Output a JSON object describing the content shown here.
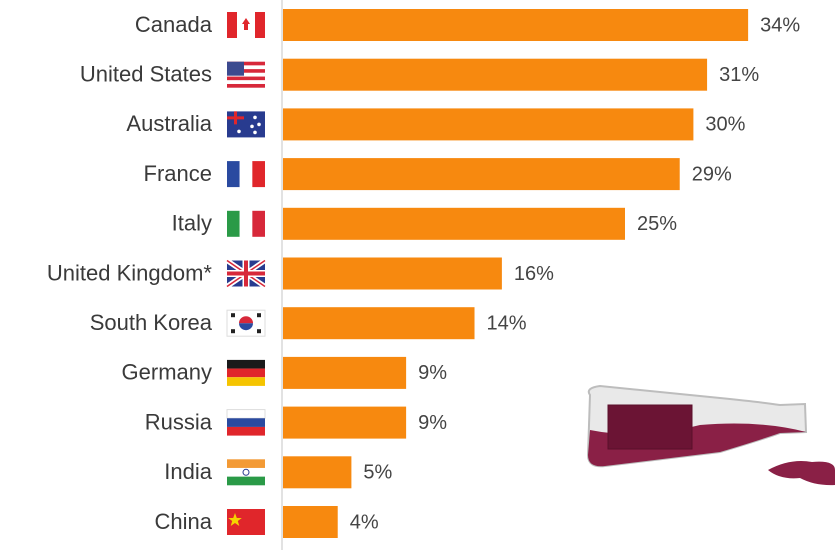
{
  "chart_data": {
    "type": "bar",
    "orientation": "horizontal",
    "categories": [
      "Canada",
      "United States",
      "Australia",
      "France",
      "Italy",
      "United Kingdom*",
      "South Korea",
      "Germany",
      "Russia",
      "India",
      "China"
    ],
    "values": [
      34,
      31,
      30,
      29,
      25,
      16,
      14,
      9,
      9,
      5,
      4
    ],
    "value_labels": [
      "34%",
      "31%",
      "30%",
      "29%",
      "25%",
      "16%",
      "14%",
      "9%",
      "9%",
      "5%",
      "4%"
    ],
    "color": "#f7890f"
  }
}
